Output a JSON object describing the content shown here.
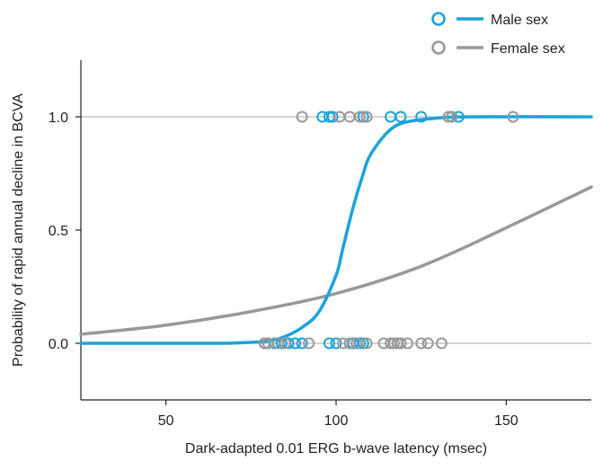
{
  "chart_data": {
    "type": "scatter",
    "title": "",
    "xlabel": "Dark-adapted 0.01 ERG b-wave latency (msec)",
    "ylabel": "Probability of rapid annual decline in BCVA",
    "xlim": [
      25,
      175
    ],
    "ylim": [
      -0.25,
      1.25
    ],
    "x_ticks": [
      50,
      100,
      150
    ],
    "y_ticks": [
      0.0,
      0.5,
      1.0
    ],
    "x_tick_labels": [
      "50",
      "100",
      "150"
    ],
    "y_tick_labels": [
      "0.0",
      "0.5",
      "1.0"
    ],
    "gridlines_y": [
      0.0,
      1.0
    ],
    "legend_position": "top-right",
    "series": [
      {
        "name": "Male sex",
        "color": "#1aa3dc",
        "curve": [
          {
            "x": 25,
            "y": 0.0
          },
          {
            "x": 60,
            "y": 0.0
          },
          {
            "x": 70,
            "y": 0.001
          },
          {
            "x": 80,
            "y": 0.01
          },
          {
            "x": 85,
            "y": 0.03
          },
          {
            "x": 90,
            "y": 0.07
          },
          {
            "x": 95,
            "y": 0.14
          },
          {
            "x": 100,
            "y": 0.3
          },
          {
            "x": 102,
            "y": 0.42
          },
          {
            "x": 105,
            "y": 0.6
          },
          {
            "x": 108,
            "y": 0.75
          },
          {
            "x": 110,
            "y": 0.83
          },
          {
            "x": 115,
            "y": 0.93
          },
          {
            "x": 120,
            "y": 0.975
          },
          {
            "x": 130,
            "y": 0.995
          },
          {
            "x": 140,
            "y": 1.0
          },
          {
            "x": 175,
            "y": 1.0
          }
        ],
        "points_y1": [
          96,
          98,
          99,
          108,
          116,
          119,
          125,
          134,
          136
        ],
        "points_y0": [
          79,
          82,
          84,
          86,
          88,
          90,
          98,
          100,
          105,
          107,
          108
        ]
      },
      {
        "name": "Female sex",
        "color": "#999999",
        "curve": [
          {
            "x": 25,
            "y": 0.04
          },
          {
            "x": 50,
            "y": 0.08
          },
          {
            "x": 75,
            "y": 0.14
          },
          {
            "x": 100,
            "y": 0.22
          },
          {
            "x": 125,
            "y": 0.34
          },
          {
            "x": 150,
            "y": 0.51
          },
          {
            "x": 175,
            "y": 0.69
          }
        ],
        "points_y1": [
          90,
          101,
          104,
          107,
          109,
          133,
          134,
          152
        ],
        "points_y0": [
          79,
          80,
          83,
          85,
          92,
          102,
          104,
          106,
          109,
          114,
          116,
          117,
          118,
          119,
          121,
          125,
          127,
          131
        ]
      }
    ]
  }
}
